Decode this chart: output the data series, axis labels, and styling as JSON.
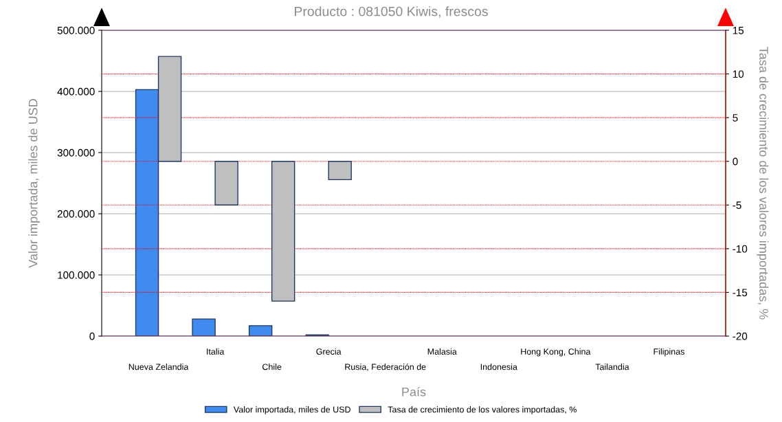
{
  "chart_data": {
    "type": "bar",
    "title": "Producto : 081050 Kiwis, frescos",
    "xlabel": "País",
    "ylabel": "Valor importada, miles de USD",
    "y2label": "Tasa de crecimiento de los valores importadas, %",
    "categories": [
      "Nueva Zelandia",
      "Italia",
      "Chile",
      "Grecia",
      "Rusia, Federación de",
      "Malasia",
      "Indonesia",
      "Hong Kong, China",
      "Tailandia",
      "Filipinas"
    ],
    "series": [
      {
        "name": "Valor importada, miles de USD",
        "color": "#3f8bef",
        "values": [
          403000,
          28000,
          17000,
          2000,
          null,
          null,
          null,
          null,
          null,
          null
        ]
      },
      {
        "name": "Tasa de crecimiento de los valores importadas, %",
        "color": "#bfbfbf",
        "axis": "y2",
        "values": [
          12.0,
          -5.0,
          -16.0,
          -2.1,
          null,
          null,
          null,
          null,
          null,
          null
        ]
      }
    ],
    "ylim": [
      0,
      500000
    ],
    "yticks": [
      {
        "value": 0,
        "label": "0"
      },
      {
        "value": 100000,
        "label": "100.000"
      },
      {
        "value": 200000,
        "label": "200.000"
      },
      {
        "value": 300000,
        "label": "300.000"
      },
      {
        "value": 400000,
        "label": "400.000"
      },
      {
        "value": 500000,
        "label": "500.000"
      }
    ],
    "y2lim": [
      -20,
      15
    ],
    "y2ticks": [
      -20,
      -15,
      -10,
      -5,
      0,
      5,
      10,
      15
    ],
    "grid": "y",
    "legend": "bottom"
  }
}
